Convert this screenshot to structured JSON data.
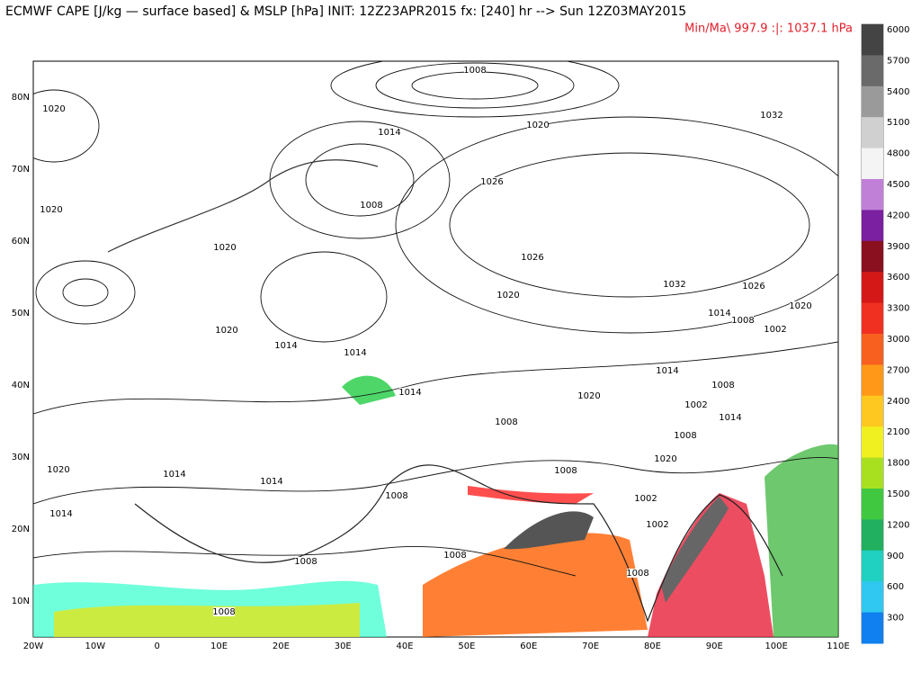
{
  "header": {
    "title": "ECMWF CAPE [J/kg — surface based] & MSLP [hPa] INIT: 12Z23APR2015 fx: [240] hr --> Sun 12Z03MAY2015",
    "minmax": "Min/Ma\\ 997.9 :|: 1037.1 hPa"
  },
  "map": {
    "lat_labels": [
      "80N",
      "70N",
      "60N",
      "50N",
      "40N",
      "30N",
      "20N",
      "10N"
    ],
    "lon_labels": [
      "20W",
      "10W",
      "0",
      "10E",
      "20E",
      "30E",
      "40E",
      "50E",
      "60E",
      "70E",
      "80E",
      "90E",
      "100E",
      "110E"
    ],
    "isobar_labels": [
      1008,
      1020,
      1014,
      1020,
      1026,
      1020,
      1008,
      1020,
      1026,
      1032,
      1020,
      1026,
      1020,
      1014,
      1008,
      1002,
      1020,
      1014,
      1014,
      1014,
      1014,
      1008,
      1020,
      1002,
      1008,
      1014,
      1008,
      1020,
      1008,
      1002,
      1002,
      1020,
      1014,
      1014,
      1014,
      1008,
      1008,
      1008,
      1008,
      1008,
      1032
    ]
  },
  "colorbar": {
    "ticks": [
      6000,
      5700,
      5400,
      5100,
      4800,
      4500,
      4200,
      3900,
      3600,
      3300,
      3000,
      2700,
      2400,
      2100,
      1800,
      1500,
      1200,
      900,
      600,
      300
    ]
  }
}
